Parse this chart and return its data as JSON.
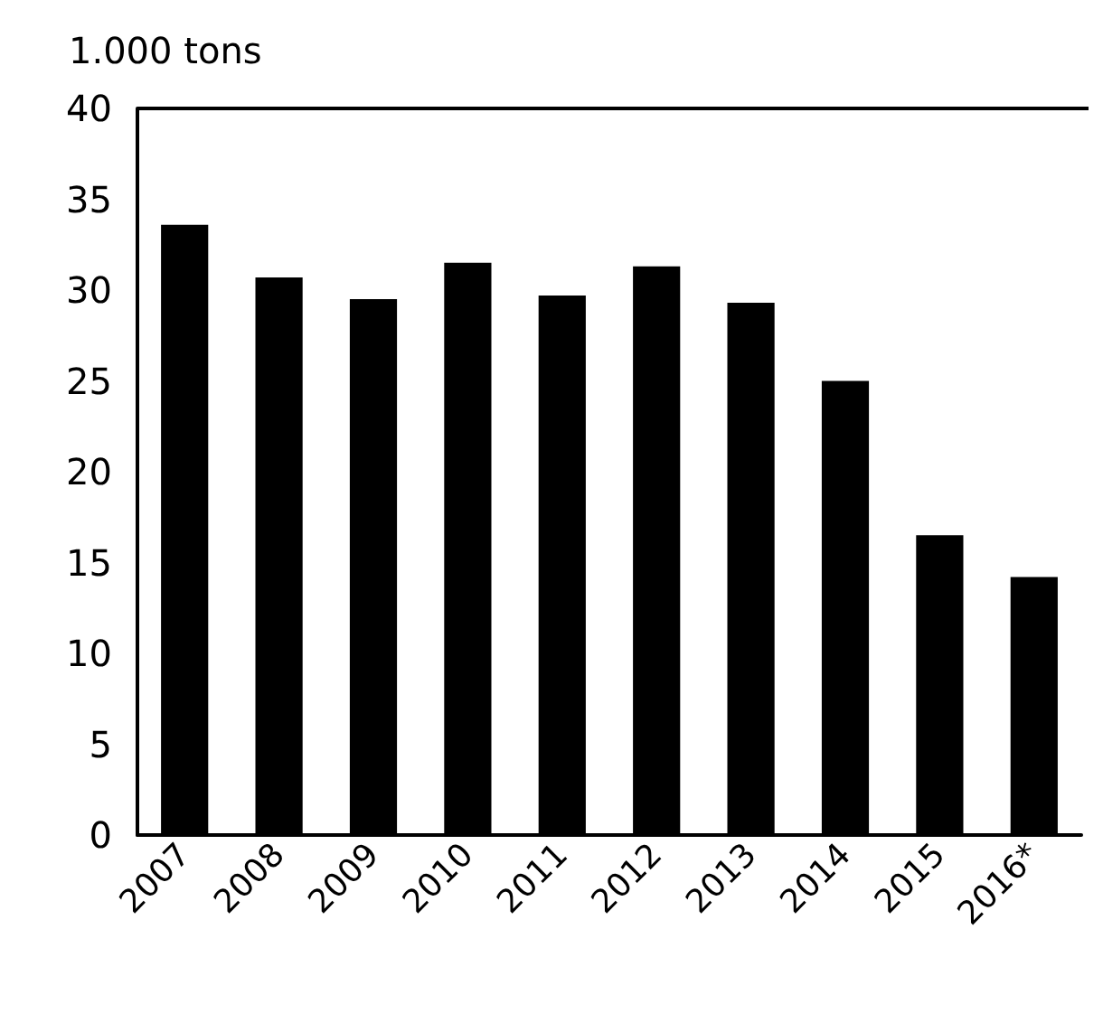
{
  "chart_data": {
    "type": "bar",
    "ylabel": "1.000 tons",
    "categories": [
      "2007",
      "2008",
      "2009",
      "2010",
      "2011",
      "2012",
      "2013",
      "2014",
      "2015",
      "2016*"
    ],
    "values": [
      33.6,
      30.7,
      29.5,
      31.5,
      29.7,
      31.3,
      29.3,
      25.0,
      16.5,
      14.2
    ],
    "color": "#000000",
    "ylim": [
      0,
      40
    ],
    "yticks": [
      0,
      5,
      10,
      15,
      20,
      25,
      30,
      35,
      40
    ],
    "grid": false
  }
}
